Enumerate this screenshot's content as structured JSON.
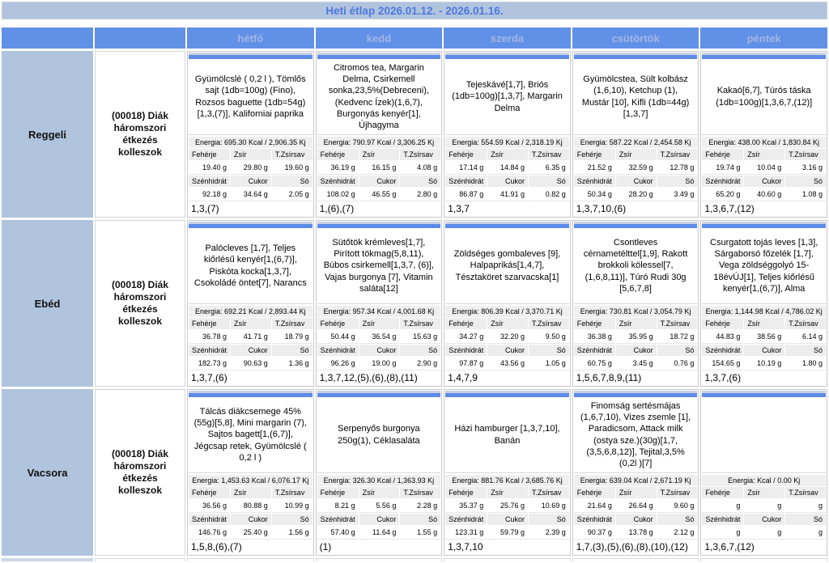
{
  "title": "Heti étlap 2026.01.12. - 2026.01.16.",
  "columns": [
    "hétfő",
    "kedd",
    "szerda",
    "csütörtök",
    "péntek"
  ],
  "labels": {
    "protein": "Fehérje",
    "fat": "Zsír",
    "trans_fat": "T.Zsírsav",
    "carb": "Szénhidrát",
    "sugar": "Cukor",
    "salt": "Só"
  },
  "colors": {
    "header_blue": "#6190e7",
    "light_steel_blue": "#b0c4de",
    "title_text_blue": "#4b79e0",
    "cell_strip_blue": "#5d8be8"
  },
  "rows": [
    {
      "meal": "Reggeli",
      "diet": "(00018) Diák háromszori étkezés kolleszok",
      "days": [
        {
          "food": "Gyümölcslé ( 0,2 l ), Tömlős sajt (1db=100g) (Fino), Rozsos baguette (1db=54g)[1,3,(7)], Kaliforniai paprika",
          "energia": "Energia: 695.30 Kcal / 2,906.35 Kj",
          "protein": "19.40 g",
          "fat": "29.80 g",
          "trans": "19.60 g",
          "carb": "92.18 g",
          "sugar": "34.64 g",
          "salt": "2.05 g",
          "allergens": "1,3,(7)"
        },
        {
          "food": "Citromos tea, Margarin Delma, Csirkemell sonka,23,5%(Debreceni), (Kedvenc Ízek)(1,6,7), Burgonyás kenyér[1], Újhagyma",
          "energia": "Energia: 790.97 Kcal / 3,306.25 Kj",
          "protein": "36.19 g",
          "fat": "16.15 g",
          "trans": "4.08 g",
          "carb": "108.02 g",
          "sugar": "46.55 g",
          "salt": "2.80 g",
          "allergens": "1,(6),(7)"
        },
        {
          "food": "Tejeskávé[1,7], Briós (1db=100g)[1,3,7], Margarin Delma",
          "energia": "Energia: 554.59 Kcal / 2,318.19 Kj",
          "protein": "17.14 g",
          "fat": "14.84 g",
          "trans": "6.35 g",
          "carb": "86.87 g",
          "sugar": "41.91 g",
          "salt": "0.82 g",
          "allergens": "1,3,7"
        },
        {
          "food": "Gyümölcstea, Sült kolbász (1,6,10), Ketchup (1), Mustár [10], Kifli (1db=44g)[1,3,7]",
          "energia": "Energia: 587.22 Kcal / 2,454.58 Kj",
          "protein": "21.52 g",
          "fat": "32.59 g",
          "trans": "12.78 g",
          "carb": "50.34 g",
          "sugar": "28.20 g",
          "salt": "3.49 g",
          "allergens": "1,3,7,10,(6)"
        },
        {
          "food": "Kakaó[6,7], Túrós táska (1db=100g)[1,3,6,7,(12)]",
          "energia": "Energia: 438.00 Kcal / 1,830.84 Kj",
          "protein": "19.74 g",
          "fat": "10.04 g",
          "trans": "3.16 g",
          "carb": "65.20 g",
          "sugar": "40.60 g",
          "salt": "1.08 g",
          "allergens": "1,3,6,7,(12)"
        }
      ]
    },
    {
      "meal": "Ebéd",
      "diet": "(00018) Diák háromszori étkezés kolleszok",
      "days": [
        {
          "food": "Palócleves [1,7], Teljes kiőrlésű kenyér[1,(6,7)], Piskóta kocka[1,3,7], Csokoládé öntet[7], Narancs",
          "energia": "Energia: 692.21 Kcal / 2,893.44 Kj",
          "protein": "36.78 g",
          "fat": "41.71 g",
          "trans": "18.79 g",
          "carb": "182.73 g",
          "sugar": "90.63 g",
          "salt": "1.36 g",
          "allergens": "1,3,7,(6)"
        },
        {
          "food": "Sütőtök krémleves[1,7], Pirított tökmag(5,8,11), Búbos csirkemell[1,3,7, (6)], Vajas burgonya [7], Vitamin saláta[12]",
          "energia": "Energia: 957.34 Kcal / 4,001.68 Kj",
          "protein": "50.44 g",
          "fat": "36.54 g",
          "trans": "15.63 g",
          "carb": "96.26 g",
          "sugar": "19.00 g",
          "salt": "2.90 g",
          "allergens": "1,3,7,12,(5),(6),(8),(11)"
        },
        {
          "food": "Zöldséges gombaleves [9], Halpaprikás[1,4,7], Tésztaköret szarvacska[1]",
          "energia": "Energia: 806.39 Kcal / 3,370.71 Kj",
          "protein": "34.27 g",
          "fat": "32.20 g",
          "trans": "9.50 g",
          "carb": "97.87 g",
          "sugar": "43.56 g",
          "salt": "1.05 g",
          "allergens": "1,4,7,9"
        },
        {
          "food": "Csontleves cérnametélttel[1,9], Rakott brokkoli kölessel[7, (1,6,8,11)], Túró Rudi 30g [5,6,7,8]",
          "energia": "Energia: 730.81 Kcal / 3,054.79 Kj",
          "protein": "36.38 g",
          "fat": "35.95 g",
          "trans": "18.72 g",
          "carb": "60.75 g",
          "sugar": "3.45 g",
          "salt": "0.76 g",
          "allergens": "1,5,6,7,8,9,(11)"
        },
        {
          "food": "Csurgatott tojás leves [1,3], Sárgaborsó főzelék [1,7], Vega zöldséggolyó 15-18évÚJ[1], Teljes kiőrlésű kenyér[1,(6,7)], Alma",
          "energia": "Energia: 1,144.98 Kcal / 4,786.02 Kj",
          "protein": "44.83 g",
          "fat": "38.56 g",
          "trans": "6.14 g",
          "carb": "154.65 g",
          "sugar": "10.19 g",
          "salt": "1.80 g",
          "allergens": "1,3,7,(6)"
        }
      ]
    },
    {
      "meal": "Vacsora",
      "diet": "(00018) Diák háromszori étkezés kolleszok",
      "days": [
        {
          "food": "Tálcás diákcsemege 45% (55g)[5,8], Mini margarin (7), Sajtos bagett[1,(6,7)], Jégcsap retek, Gyümölcslé ( 0,2 l )",
          "energia": "Energia: 1,453.63 Kcal / 6,076.17 Kj",
          "protein": "36.56 g",
          "fat": "80.88 g",
          "trans": "10.99 g",
          "carb": "146.76 g",
          "sugar": "25.40 g",
          "salt": "1.56 g",
          "allergens": "1,5,8,(6),(7)"
        },
        {
          "food": "Serpenyős burgonya 250g(1), Céklasaláta",
          "energia": "Energia: 326.30 Kcal / 1,363.93 Kj",
          "protein": "8.21 g",
          "fat": "5.56 g",
          "trans": "2.28 g",
          "carb": "57.40 g",
          "sugar": "11.64 g",
          "salt": "1.55 g",
          "allergens": "(1)"
        },
        {
          "food": "Házi hamburger [1,3,7,10], Banán",
          "energia": "Energia: 881.76 Kcal / 3,685.76 Kj",
          "protein": "35.37 g",
          "fat": "25.76 g",
          "trans": "10.69 g",
          "carb": "123.31 g",
          "sugar": "59.79 g",
          "salt": "2.39 g",
          "allergens": "1,3,7,10"
        },
        {
          "food": "Finomság sertésmájas (1,6,7,10), Vizes zsemle [1], Paradicsom, Attack milk (ostya sze.)(30g)[1,7, (3,5,6,8,12)], Tejital,3,5% (0,2l )[7]",
          "energia": "Energia: 639.04 Kcal / 2,671.19 Kj",
          "protein": "21.64 g",
          "fat": "26.64 g",
          "trans": "9.60 g",
          "carb": "90.37 g",
          "sugar": "13.78 g",
          "salt": "2.12 g",
          "allergens": "1,7,(3),(5),(6),(8),(10),(12)"
        },
        {
          "food": "",
          "energia": "Energia:  Kcal / 0.00 Kj",
          "protein": "g",
          "fat": "g",
          "trans": "g",
          "carb": "g",
          "sugar": "g",
          "salt": "g",
          "allergens": "1,3,6,7,(12)"
        }
      ]
    }
  ]
}
